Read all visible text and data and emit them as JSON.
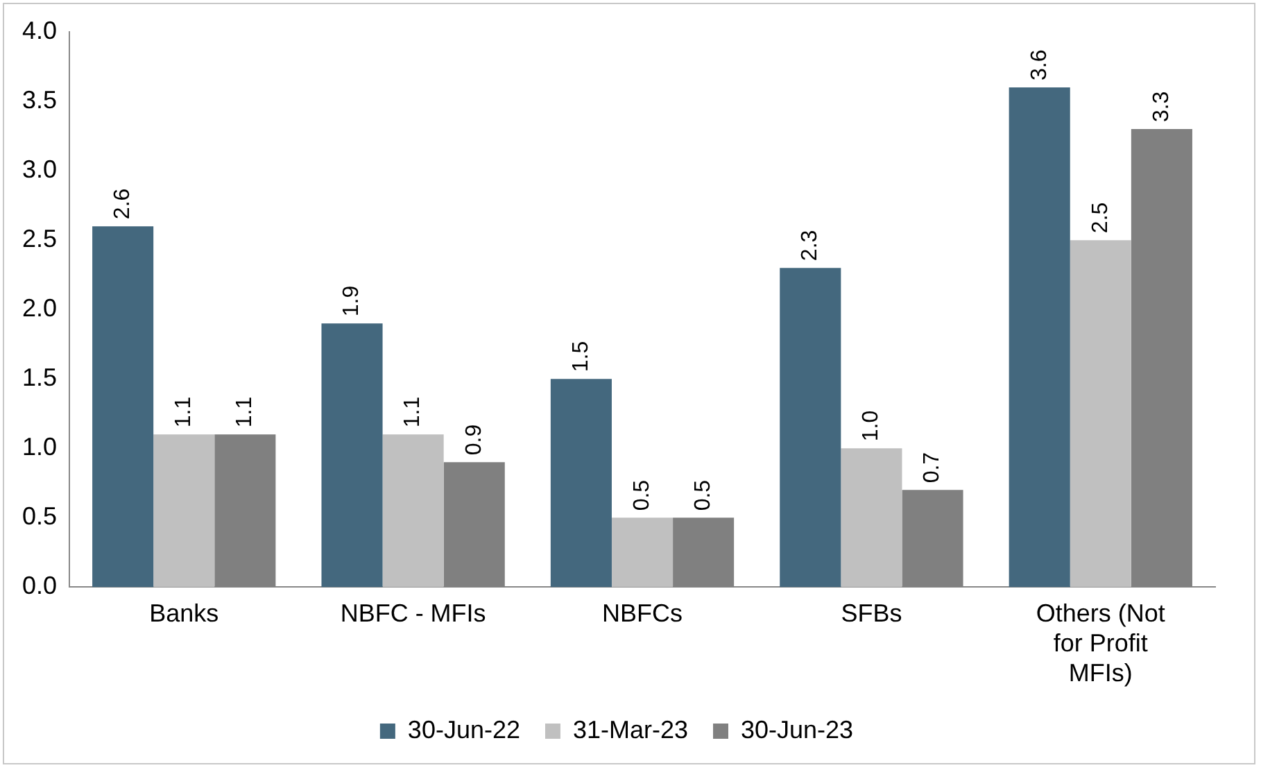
{
  "chart_data": {
    "type": "bar",
    "categories": [
      "Banks",
      "NBFC - MFIs",
      "NBFCs",
      "SFBs",
      "Others (Not for Profit MFIs)"
    ],
    "series": [
      {
        "name": "30-Jun-22",
        "color": "#44687e",
        "values": [
          2.6,
          1.9,
          1.5,
          2.3,
          3.6
        ],
        "value_labels": [
          "2.6",
          "1.9",
          "1.5",
          "2.3",
          "3.6"
        ]
      },
      {
        "name": "31-Mar-23",
        "color": "#c0c0c0",
        "values": [
          1.1,
          1.1,
          0.5,
          1.0,
          2.5
        ],
        "value_labels": [
          "1.1",
          "1.1",
          "0.5",
          "1.0",
          "2.5"
        ]
      },
      {
        "name": "30-Jun-23",
        "color": "#808080",
        "values": [
          1.1,
          0.9,
          0.5,
          0.7,
          3.3
        ],
        "value_labels": [
          "1.1",
          "0.9",
          "0.5",
          "0.7",
          "3.3"
        ]
      }
    ],
    "ylim": [
      0,
      4
    ],
    "yticks": [
      {
        "value": 0,
        "label": "0.0"
      },
      {
        "value": 0.5,
        "label": "0.5"
      },
      {
        "value": 1,
        "label": "1.0"
      },
      {
        "value": 1.5,
        "label": "1.5"
      },
      {
        "value": 2,
        "label": "2.0"
      },
      {
        "value": 2.5,
        "label": "2.5"
      },
      {
        "value": 3,
        "label": "3.0"
      },
      {
        "value": 3.5,
        "label": "3.5"
      },
      {
        "value": 4,
        "label": "4.0"
      }
    ],
    "grid": false,
    "legend": "bottom"
  }
}
